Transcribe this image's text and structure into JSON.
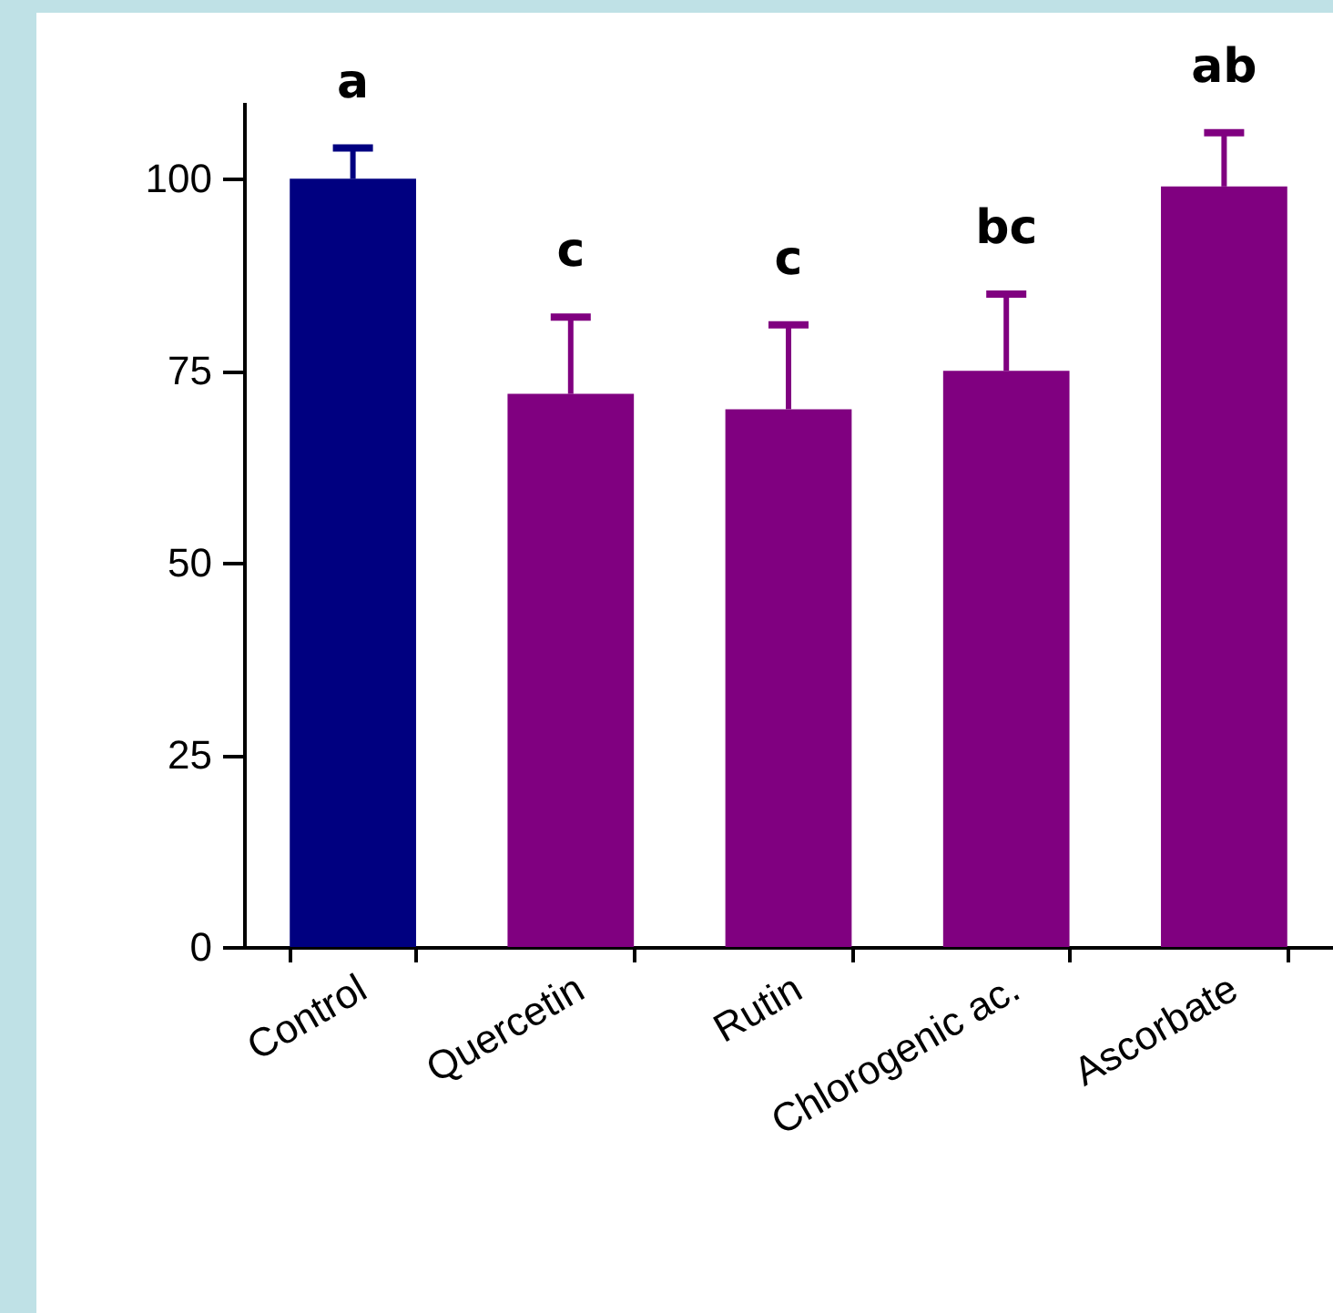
{
  "chart_data": {
    "type": "bar",
    "categories": [
      "Control",
      "Quercetin",
      "Rutin",
      "Chlorogenic ac.",
      "Ascorbate"
    ],
    "values": [
      100,
      72,
      70,
      75,
      99
    ],
    "colors": [
      "#000080",
      "#800080",
      "#800080",
      "#800080",
      "#800080"
    ],
    "errors": [
      [
        100,
        104
      ],
      [
        72,
        82
      ],
      [
        70,
        81
      ],
      [
        75,
        85
      ],
      [
        99,
        106
      ]
    ],
    "ylim": [
      0,
      110
    ],
    "yticks": [
      0,
      25,
      50,
      75,
      100
    ],
    "grid": false,
    "annotations": [
      {
        "text": "a",
        "x": "Control",
        "y": 104
      },
      {
        "text": "c",
        "x": "Quercetin",
        "y": 82
      },
      {
        "text": "c",
        "x": "Rutin",
        "y": 81
      },
      {
        "text": "bc",
        "x": "Chlorogenic ac.",
        "y": 85
      },
      {
        "text": "ab",
        "x": "Ascorbate",
        "y": 106
      }
    ]
  }
}
